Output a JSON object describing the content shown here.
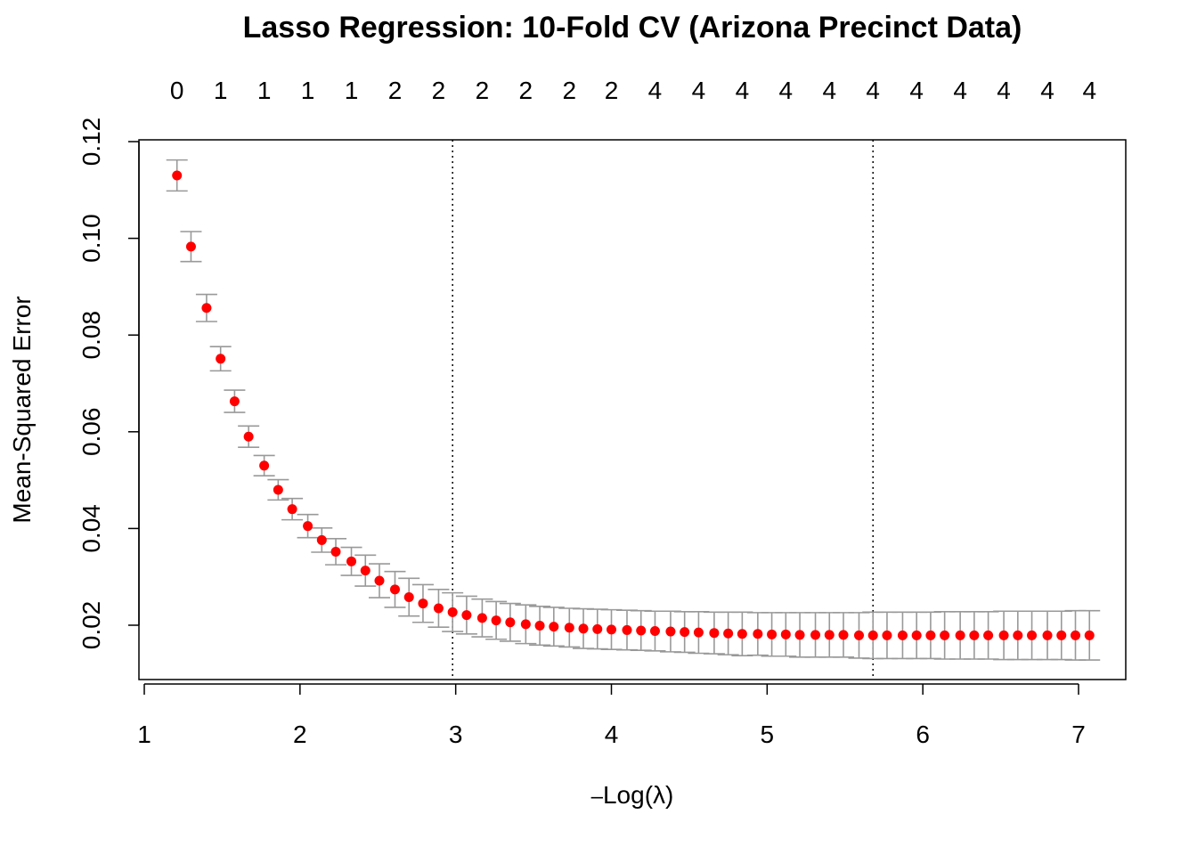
{
  "chart_data": {
    "type": "scatter",
    "title": "Lasso Regression: 10-Fold CV (Arizona Precinct Data)",
    "xlabel_prefix": "–",
    "xlabel": "Log(λ)",
    "ylabel": "Mean-Squared Error",
    "xlim": [
      1,
      7.1
    ],
    "ylim": [
      0.008,
      0.12
    ],
    "x_ticks": [
      1,
      2,
      3,
      4,
      5,
      6,
      7
    ],
    "x_tick_labels": [
      "1",
      "2",
      "3",
      "4",
      "5",
      "6",
      "7"
    ],
    "y_ticks": [
      0.02,
      0.04,
      0.06,
      0.08,
      0.1,
      0.12
    ],
    "y_tick_labels": [
      "0.02",
      "0.04",
      "0.06",
      "0.08",
      "0.10",
      "0.12"
    ],
    "top_axis_labels": [
      "0",
      "1",
      "1",
      "1",
      "1",
      "2",
      "2",
      "2",
      "2",
      "2",
      "2",
      "4",
      "4",
      "4",
      "4",
      "4",
      "4",
      "4",
      "4",
      "4",
      "4",
      "4"
    ],
    "top_axis_positions": [
      1.21,
      1.49,
      1.77,
      2.05,
      2.33,
      2.61,
      2.89,
      3.17,
      3.45,
      3.73,
      4.0,
      4.28,
      4.56,
      4.84,
      5.12,
      5.4,
      5.68,
      5.96,
      6.24,
      6.52,
      6.8,
      7.07
    ],
    "vlines": [
      2.98,
      5.68
    ],
    "point_color": "#ff0000",
    "errorbar_color": "#999999",
    "series": [
      {
        "name": "CV MSE",
        "x": [
          1.21,
          1.3,
          1.4,
          1.49,
          1.58,
          1.67,
          1.77,
          1.86,
          1.95,
          2.05,
          2.14,
          2.23,
          2.33,
          2.42,
          2.51,
          2.61,
          2.7,
          2.79,
          2.89,
          2.98,
          3.07,
          3.17,
          3.26,
          3.35,
          3.45,
          3.54,
          3.63,
          3.73,
          3.82,
          3.91,
          4.0,
          4.1,
          4.19,
          4.28,
          4.38,
          4.47,
          4.56,
          4.66,
          4.75,
          4.84,
          4.94,
          5.03,
          5.12,
          5.21,
          5.31,
          5.4,
          5.49,
          5.59,
          5.68,
          5.77,
          5.87,
          5.96,
          6.05,
          6.14,
          6.24,
          6.33,
          6.42,
          6.52,
          6.61,
          6.7,
          6.8,
          6.89,
          6.98,
          7.07
        ],
        "y": [
          0.113,
          0.0983,
          0.0856,
          0.0751,
          0.0663,
          0.059,
          0.053,
          0.048,
          0.044,
          0.0405,
          0.0376,
          0.0352,
          0.0332,
          0.0313,
          0.0292,
          0.0274,
          0.0258,
          0.0245,
          0.0235,
          0.0227,
          0.0221,
          0.0215,
          0.021,
          0.0206,
          0.0202,
          0.0199,
          0.0197,
          0.0195,
          0.0193,
          0.0192,
          0.0191,
          0.019,
          0.0189,
          0.0188,
          0.0187,
          0.0186,
          0.0185,
          0.0184,
          0.0183,
          0.0182,
          0.0182,
          0.0181,
          0.0181,
          0.018,
          0.018,
          0.018,
          0.018,
          0.0179,
          0.0179,
          0.0179,
          0.0179,
          0.0179,
          0.0179,
          0.0179,
          0.0179,
          0.0179,
          0.0179,
          0.0179,
          0.0179,
          0.0179,
          0.0179,
          0.0179,
          0.0179,
          0.0179
        ],
        "upper": [
          0.1162,
          0.1014,
          0.0884,
          0.0776,
          0.0686,
          0.0612,
          0.0551,
          0.0501,
          0.0462,
          0.0429,
          0.0401,
          0.0379,
          0.0361,
          0.0345,
          0.0327,
          0.0311,
          0.0297,
          0.0284,
          0.0274,
          0.0267,
          0.026,
          0.0254,
          0.0249,
          0.0245,
          0.0242,
          0.0239,
          0.0237,
          0.0235,
          0.0234,
          0.0233,
          0.0232,
          0.0231,
          0.023,
          0.0229,
          0.0229,
          0.0228,
          0.0228,
          0.0227,
          0.0227,
          0.0227,
          0.0226,
          0.0226,
          0.0226,
          0.0226,
          0.0226,
          0.0226,
          0.0226,
          0.0226,
          0.0227,
          0.0227,
          0.0227,
          0.0227,
          0.0227,
          0.0228,
          0.0228,
          0.0228,
          0.0228,
          0.0229,
          0.0229,
          0.0229,
          0.0229,
          0.0229,
          0.023,
          0.023
        ],
        "lower": [
          0.1098,
          0.0952,
          0.0828,
          0.0726,
          0.064,
          0.0568,
          0.0509,
          0.0459,
          0.0418,
          0.0381,
          0.0351,
          0.0325,
          0.0303,
          0.0281,
          0.0257,
          0.0237,
          0.0219,
          0.0206,
          0.0196,
          0.0187,
          0.0182,
          0.0176,
          0.0171,
          0.0167,
          0.0162,
          0.0159,
          0.0157,
          0.0155,
          0.0152,
          0.0151,
          0.015,
          0.0149,
          0.0148,
          0.0147,
          0.0145,
          0.0144,
          0.0142,
          0.0141,
          0.0139,
          0.0137,
          0.0138,
          0.0136,
          0.0136,
          0.0134,
          0.0134,
          0.0134,
          0.0134,
          0.0132,
          0.0131,
          0.0131,
          0.0131,
          0.0131,
          0.0131,
          0.013,
          0.013,
          0.013,
          0.013,
          0.0129,
          0.0129,
          0.0129,
          0.0129,
          0.0129,
          0.0128,
          0.0128
        ]
      }
    ]
  }
}
